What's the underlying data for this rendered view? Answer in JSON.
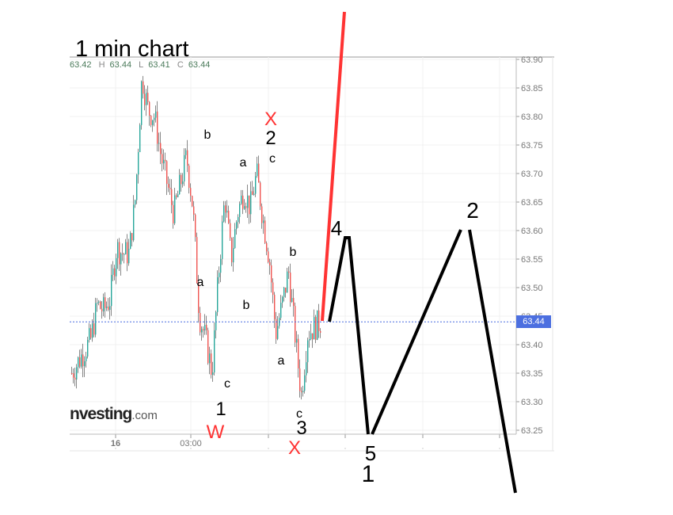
{
  "title": "1 min chart",
  "ohlc": {
    "o": "63.42",
    "h_label": "H",
    "h": "63.44",
    "l_label": "L",
    "l": "63.41",
    "c_label": "C",
    "c": "63.44"
  },
  "logo": {
    "main": "nvesting",
    "suffix": ".com"
  },
  "current_price": "63.44",
  "colors": {
    "up": "#26a69a",
    "down": "#ef5350",
    "current_line": "#4c6fe0",
    "annotation_red": "#ff3333",
    "annotation_black": "#000000"
  },
  "chart_data": {
    "type": "candlestick",
    "x_tick_labels": [
      "16",
      "03:00",
      "",
      "",
      "",
      ""
    ],
    "y_ticks": [
      "63.25",
      "63.30",
      "63.35",
      "63.40",
      "63.45",
      "63.50",
      "63.55",
      "63.60",
      "63.65",
      "63.70",
      "63.75",
      "63.80",
      "63.85",
      "63.90"
    ],
    "ylim": [
      63.25,
      63.9
    ],
    "grid": true,
    "approx_close_path": [
      63.35,
      63.37,
      63.39,
      63.41,
      63.47,
      63.46,
      63.48,
      63.57,
      63.56,
      63.56,
      63.66,
      63.87,
      63.81,
      63.8,
      63.73,
      63.68,
      63.63,
      63.68,
      63.73,
      63.64,
      63.45,
      63.41,
      63.35,
      63.52,
      63.66,
      63.55,
      63.63,
      63.67,
      63.64,
      63.7,
      63.62,
      63.55,
      63.42,
      63.47,
      63.53,
      63.42,
      63.31,
      63.42,
      63.43,
      63.44
    ],
    "current_price": 63.44
  },
  "annotations": {
    "wave_small": [
      "b",
      "a",
      "c",
      "a",
      "b",
      "c",
      "b",
      "a",
      "c"
    ],
    "x_top": "X",
    "two_top": "2",
    "one": "1",
    "w": "W",
    "three": "3",
    "x_bottom": "X",
    "four": "4",
    "two_right": "2",
    "five": "5",
    "one_bottom": "1"
  }
}
